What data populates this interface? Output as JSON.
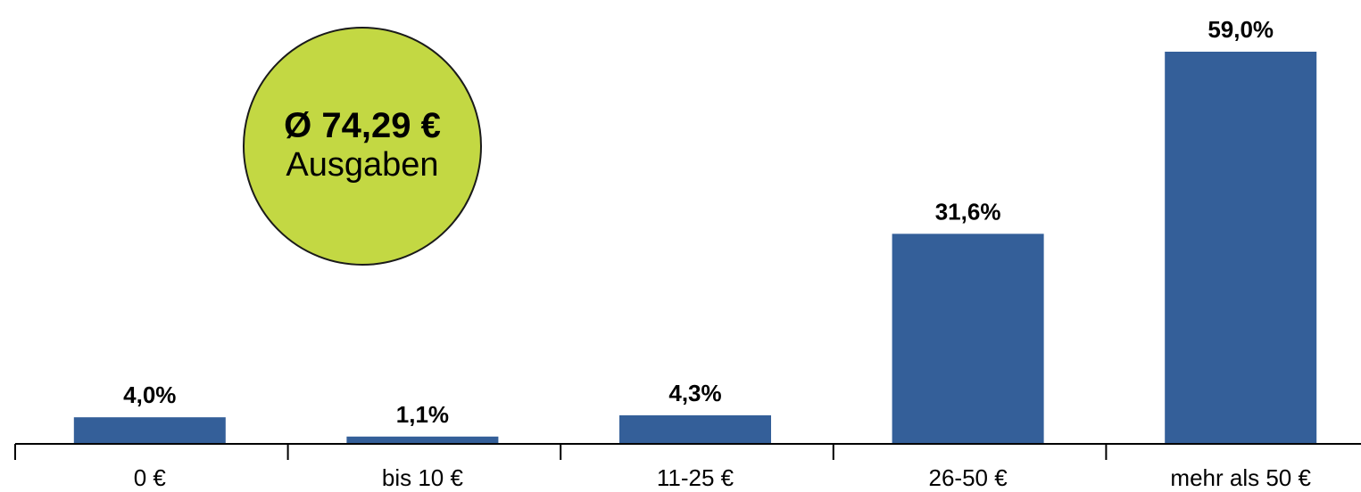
{
  "colors": {
    "bar": "#345f99",
    "badge": "#c3d843"
  },
  "badge": {
    "value": "Ø 74,29 €",
    "label": "Ausgaben"
  },
  "chart_data": {
    "type": "bar",
    "categories": [
      "0 €",
      "bis 10 €",
      "11-25 €",
      "26-50 €",
      "mehr als 50 €"
    ],
    "values": [
      4.0,
      1.1,
      4.3,
      31.6,
      59.0
    ],
    "value_labels": [
      "4,0%",
      "1,1%",
      "4,3%",
      "31,6%",
      "59,0%"
    ],
    "ylim": [
      0,
      60
    ],
    "grid": false,
    "legend": "none"
  }
}
